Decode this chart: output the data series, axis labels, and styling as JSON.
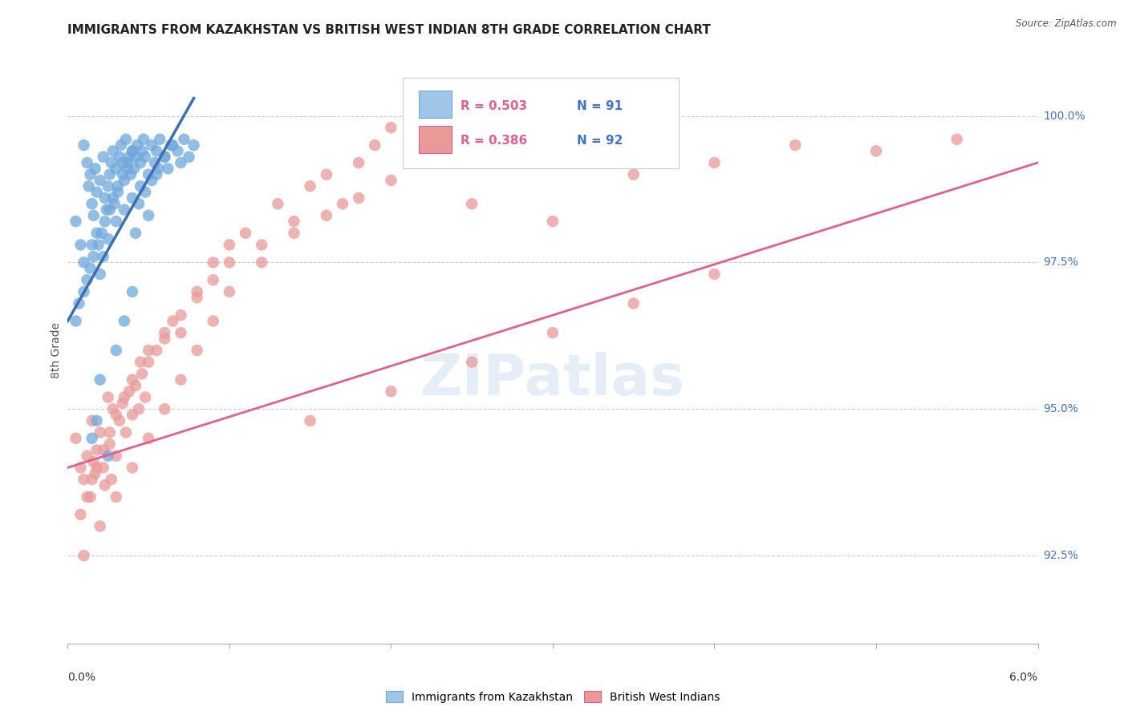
{
  "title": "IMMIGRANTS FROM KAZAKHSTAN VS BRITISH WEST INDIAN 8TH GRADE CORRELATION CHART",
  "source": "Source: ZipAtlas.com",
  "ylabel": "8th Grade",
  "ytick_values": [
    92.5,
    95.0,
    97.5,
    100.0
  ],
  "xmin": 0.0,
  "xmax": 6.0,
  "ymin": 91.0,
  "ymax": 101.0,
  "legend_blue_r": "R = 0.503",
  "legend_blue_n": "N = 91",
  "legend_pink_r": "R = 0.386",
  "legend_pink_n": "N = 92",
  "legend_label_blue": "Immigrants from Kazakhstan",
  "legend_label_pink": "British West Indians",
  "blue_color": "#6fa8dc",
  "pink_color": "#ea9999",
  "trendline_blue": "#3d6eb5",
  "trendline_pink": "#e06090",
  "blue_scatter_x": [
    0.05,
    0.08,
    0.1,
    0.12,
    0.13,
    0.14,
    0.15,
    0.16,
    0.17,
    0.18,
    0.2,
    0.22,
    0.23,
    0.24,
    0.25,
    0.26,
    0.27,
    0.28,
    0.29,
    0.3,
    0.31,
    0.32,
    0.33,
    0.34,
    0.35,
    0.36,
    0.37,
    0.38,
    0.39,
    0.4,
    0.41,
    0.42,
    0.43,
    0.45,
    0.46,
    0.47,
    0.48,
    0.5,
    0.52,
    0.54,
    0.55,
    0.57,
    0.6,
    0.62,
    0.65,
    0.68,
    0.7,
    0.72,
    0.75,
    0.78,
    0.1,
    0.15,
    0.18,
    0.2,
    0.22,
    0.25,
    0.3,
    0.35,
    0.4,
    0.45,
    0.05,
    0.07,
    0.1,
    0.12,
    0.14,
    0.16,
    0.19,
    0.21,
    0.23,
    0.26,
    0.28,
    0.31,
    0.34,
    0.37,
    0.4,
    0.44,
    0.48,
    0.52,
    0.56,
    0.6,
    0.64,
    0.55,
    0.2,
    0.3,
    0.35,
    0.4,
    0.25,
    0.15,
    0.18,
    0.42,
    0.5
  ],
  "blue_scatter_y": [
    98.2,
    97.8,
    99.5,
    99.2,
    98.8,
    99.0,
    98.5,
    98.3,
    99.1,
    98.7,
    98.9,
    99.3,
    98.6,
    98.4,
    98.8,
    99.0,
    99.2,
    99.4,
    98.5,
    99.1,
    98.7,
    99.3,
    99.5,
    99.2,
    98.9,
    99.6,
    99.1,
    99.3,
    99.0,
    99.4,
    99.1,
    99.3,
    99.5,
    99.2,
    99.4,
    99.6,
    99.3,
    99.0,
    99.5,
    99.2,
    99.4,
    99.6,
    99.3,
    99.1,
    99.5,
    99.4,
    99.2,
    99.6,
    99.3,
    99.5,
    97.5,
    97.8,
    98.0,
    97.3,
    97.6,
    97.9,
    98.2,
    98.4,
    98.6,
    98.8,
    96.5,
    96.8,
    97.0,
    97.2,
    97.4,
    97.6,
    97.8,
    98.0,
    98.2,
    98.4,
    98.6,
    98.8,
    99.0,
    99.2,
    99.4,
    98.5,
    98.7,
    98.9,
    99.1,
    99.3,
    99.5,
    99.0,
    95.5,
    96.0,
    96.5,
    97.0,
    94.2,
    94.5,
    94.8,
    98.0,
    98.3
  ],
  "pink_scatter_x": [
    0.05,
    0.08,
    0.1,
    0.12,
    0.14,
    0.15,
    0.16,
    0.17,
    0.18,
    0.2,
    0.22,
    0.23,
    0.25,
    0.26,
    0.27,
    0.28,
    0.3,
    0.32,
    0.34,
    0.36,
    0.38,
    0.4,
    0.42,
    0.44,
    0.46,
    0.48,
    0.5,
    0.55,
    0.6,
    0.65,
    0.7,
    0.8,
    0.9,
    1.0,
    1.1,
    1.2,
    1.3,
    1.4,
    1.5,
    1.6,
    1.7,
    1.8,
    1.9,
    2.0,
    2.2,
    2.5,
    2.8,
    3.0,
    3.5,
    4.0,
    4.5,
    5.0,
    5.5,
    0.08,
    0.12,
    0.15,
    0.18,
    0.22,
    0.26,
    0.3,
    0.35,
    0.4,
    0.45,
    0.5,
    0.6,
    0.7,
    0.8,
    0.9,
    1.0,
    1.2,
    1.4,
    1.6,
    1.8,
    2.0,
    2.5,
    3.0,
    0.1,
    0.2,
    0.3,
    0.4,
    0.5,
    0.6,
    0.7,
    0.8,
    0.9,
    1.0,
    1.5,
    2.0,
    2.5,
    3.0,
    3.5,
    4.0
  ],
  "pink_scatter_y": [
    94.5,
    94.0,
    93.8,
    94.2,
    93.5,
    94.8,
    94.1,
    93.9,
    94.3,
    94.6,
    94.0,
    93.7,
    95.2,
    94.4,
    93.8,
    95.0,
    94.2,
    94.8,
    95.1,
    94.6,
    95.3,
    94.9,
    95.4,
    95.0,
    95.6,
    95.2,
    95.8,
    96.0,
    96.2,
    96.5,
    96.3,
    97.0,
    97.5,
    97.8,
    98.0,
    97.5,
    98.5,
    98.2,
    98.8,
    99.0,
    98.5,
    99.2,
    99.5,
    99.8,
    99.2,
    100.0,
    99.5,
    99.3,
    99.0,
    99.2,
    99.5,
    99.4,
    99.6,
    93.2,
    93.5,
    93.8,
    94.0,
    94.3,
    94.6,
    94.9,
    95.2,
    95.5,
    95.8,
    96.0,
    96.3,
    96.6,
    96.9,
    97.2,
    97.5,
    97.8,
    98.0,
    98.3,
    98.6,
    98.9,
    98.5,
    98.2,
    92.5,
    93.0,
    93.5,
    94.0,
    94.5,
    95.0,
    95.5,
    96.0,
    96.5,
    97.0,
    94.8,
    95.3,
    95.8,
    96.3,
    96.8,
    97.3
  ],
  "blue_trend_x0": 0.0,
  "blue_trend_y0": 96.5,
  "blue_trend_x1": 0.78,
  "blue_trend_y1": 100.3,
  "pink_trend_x0": 0.0,
  "pink_trend_y0": 94.0,
  "pink_trend_x1": 6.0,
  "pink_trend_y1": 99.2,
  "watermark": "ZIPatlas",
  "title_fontsize": 11,
  "axis_label_fontsize": 10,
  "tick_fontsize": 10
}
